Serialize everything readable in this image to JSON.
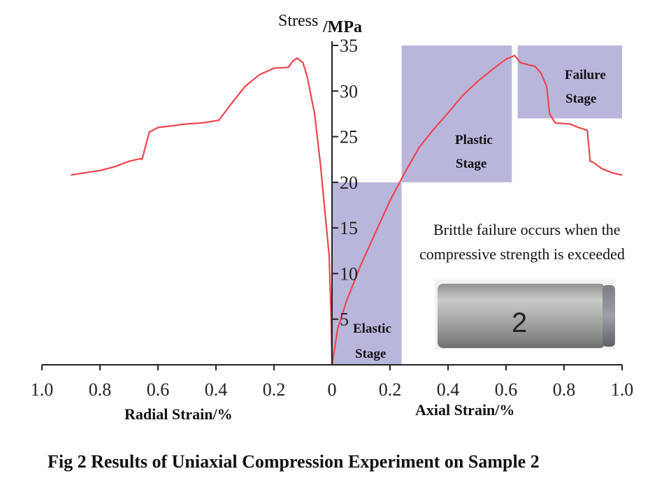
{
  "chart_data": {
    "type": "line",
    "title": "Fig 2 Results of Uniaxial Compression Experiment on Sample 2",
    "y_title_main": "Stress",
    "y_title_unit": "/MPa",
    "ylim": [
      0,
      35
    ],
    "y_ticks": [
      "5",
      "10",
      "15",
      "20",
      "25",
      "30",
      "35"
    ],
    "x_ticks_left": [
      "1.0",
      "0.8",
      "0.6",
      "0.4",
      "0.2"
    ],
    "x_tick_zero": "0",
    "x_ticks_right": [
      "0.2",
      "0.4",
      "0.6",
      "0.8",
      "1.0"
    ],
    "x_label_left": "Radial Strain/%",
    "x_label_right": "Axial Strain/%",
    "regions": [
      {
        "line1": "Elastic",
        "line2": "Stage",
        "x": [
          0,
          0.24
        ],
        "y": [
          0,
          20
        ]
      },
      {
        "line1": "Plastic",
        "line2": "Stage",
        "x": [
          0.24,
          0.62
        ],
        "y": [
          20,
          35
        ]
      },
      {
        "line1": "Failure",
        "line2": "Stage",
        "x": [
          0.64,
          1.0
        ],
        "y": [
          27,
          35
        ]
      }
    ],
    "annotation_line1": "Brittle failure occurs when the",
    "annotation_line2": "compressive strength is exceeded",
    "sample_label": "2",
    "series": [
      {
        "axis": "radial",
        "values": [
          [
            0.9,
            20.8
          ],
          [
            0.8,
            21.3
          ],
          [
            0.75,
            21.7
          ],
          [
            0.7,
            22.3
          ],
          [
            0.66,
            22.6
          ],
          [
            0.655,
            22.5
          ],
          [
            0.63,
            25.5
          ],
          [
            0.6,
            26.0
          ],
          [
            0.5,
            26.4
          ],
          [
            0.45,
            26.5
          ],
          [
            0.39,
            26.8
          ],
          [
            0.35,
            28.5
          ],
          [
            0.3,
            30.5
          ],
          [
            0.25,
            31.8
          ],
          [
            0.2,
            32.5
          ],
          [
            0.15,
            32.6
          ],
          [
            0.135,
            33.3
          ],
          [
            0.12,
            33.6
          ],
          [
            0.1,
            33.1
          ],
          [
            0.085,
            31.5
          ],
          [
            0.06,
            27.5
          ],
          [
            0.04,
            22.0
          ],
          [
            0.025,
            17.0
          ],
          [
            0.01,
            12.0
          ],
          [
            0.003,
            5.0
          ],
          [
            0,
            0
          ]
        ]
      },
      {
        "axis": "axial",
        "values": [
          [
            0,
            0
          ],
          [
            0.02,
            4.0
          ],
          [
            0.05,
            7.0
          ],
          [
            0.1,
            11.0
          ],
          [
            0.15,
            14.5
          ],
          [
            0.2,
            18.0
          ],
          [
            0.25,
            21.0
          ],
          [
            0.3,
            23.8
          ],
          [
            0.35,
            25.8
          ],
          [
            0.4,
            27.6
          ],
          [
            0.45,
            29.5
          ],
          [
            0.5,
            31.0
          ],
          [
            0.55,
            32.3
          ],
          [
            0.6,
            33.5
          ],
          [
            0.63,
            33.9
          ],
          [
            0.65,
            33.1
          ],
          [
            0.7,
            32.7
          ],
          [
            0.72,
            32.0
          ],
          [
            0.74,
            30.5
          ],
          [
            0.75,
            27.5
          ],
          [
            0.77,
            26.5
          ],
          [
            0.82,
            26.4
          ],
          [
            0.85,
            26.0
          ],
          [
            0.88,
            25.7
          ],
          [
            0.89,
            22.3
          ],
          [
            0.9,
            22.2
          ],
          [
            0.93,
            21.5
          ],
          [
            0.97,
            21.0
          ],
          [
            1.0,
            20.8
          ]
        ]
      }
    ],
    "colors": {
      "line": "#f0444d",
      "region": "#b9b6dc",
      "axis": "#222222"
    }
  }
}
